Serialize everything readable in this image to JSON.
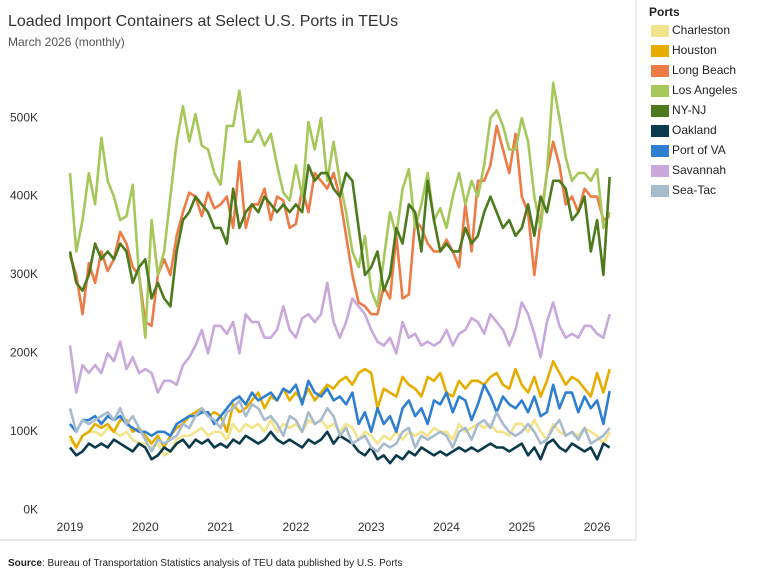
{
  "chart_data": {
    "type": "line",
    "title": "Loaded Import Containers at Select U.S. Ports in TEUs",
    "subtitle": "March 2026 (monthly)",
    "source_label": "Source",
    "source_text": ": Bureau of Transportation Statistics analysis of TEU data published by U.S. Ports",
    "legend_title": "Ports",
    "legend_position": "right",
    "grid": false,
    "categories": [
      "2019",
      null,
      null,
      null,
      null,
      null,
      null,
      null,
      null,
      null,
      null,
      null,
      "2020",
      null,
      null,
      null,
      null,
      null,
      null,
      null,
      null,
      null,
      null,
      null,
      "2021",
      null,
      null,
      null,
      null,
      null,
      null,
      null,
      null,
      null,
      null,
      null,
      "2022",
      null,
      null,
      null,
      null,
      null,
      null,
      null,
      null,
      null,
      null,
      null,
      "2023",
      null,
      null,
      null,
      null,
      null,
      null,
      null,
      null,
      null,
      null,
      null,
      "2024",
      null,
      null,
      null,
      null,
      null,
      null,
      null,
      null,
      null,
      null,
      null,
      "2025",
      null,
      null,
      null,
      null,
      null,
      null,
      null,
      null,
      null,
      null,
      null,
      "2026",
      null,
      null
    ],
    "ylim": [
      -15000,
      606000
    ],
    "yticks": [
      {
        "value": 0,
        "label": "0K"
      },
      {
        "value": 100000,
        "label": "100K"
      },
      {
        "value": 200000,
        "label": "200K"
      },
      {
        "value": 300000,
        "label": "300K"
      },
      {
        "value": 400000,
        "label": "400K"
      },
      {
        "value": 500000,
        "label": "500K"
      }
    ],
    "series": [
      {
        "name": "Charleston",
        "color": "#f3e38a",
        "values": [
          90000,
          80000,
          95000,
          100000,
          100000,
          95000,
          105000,
          100000,
          95000,
          100000,
          90000,
          85000,
          85000,
          80000,
          85000,
          70000,
          75000,
          90000,
          95000,
          95000,
          100000,
          105000,
          95000,
          100000,
          100000,
          90000,
          110000,
          100000,
          110000,
          105000,
          110000,
          100000,
          115000,
          100000,
          110000,
          105000,
          110000,
          100000,
          115000,
          110000,
          115000,
          105000,
          110000,
          100000,
          110000,
          105000,
          90000,
          100000,
          95000,
          85000,
          95000,
          90000,
          100000,
          90000,
          100000,
          95000,
          100000,
          95000,
          105000,
          100000,
          100000,
          90000,
          110000,
          100000,
          105000,
          110000,
          105000,
          110000,
          100000,
          100000,
          95000,
          110000,
          110000,
          100000,
          115000,
          100000,
          90000,
          110000,
          100000,
          95000,
          100000,
          95000,
          105000,
          100000,
          95000,
          85000,
          100000
        ]
      },
      {
        "name": "Houston",
        "color": "#e6ad00",
        "values": [
          95000,
          80000,
          95000,
          100000,
          110000,
          105000,
          110000,
          100000,
          115000,
          115000,
          100000,
          105000,
          95000,
          85000,
          95000,
          80000,
          95000,
          105000,
          110000,
          120000,
          125000,
          130000,
          120000,
          125000,
          120000,
          100000,
          135000,
          125000,
          130000,
          140000,
          150000,
          130000,
          145000,
          140000,
          155000,
          140000,
          150000,
          140000,
          155000,
          140000,
          150000,
          160000,
          155000,
          165000,
          170000,
          160000,
          175000,
          180000,
          175000,
          130000,
          155000,
          150000,
          145000,
          170000,
          160000,
          155000,
          145000,
          170000,
          165000,
          175000,
          150000,
          145000,
          165000,
          155000,
          165000,
          165000,
          160000,
          170000,
          175000,
          160000,
          155000,
          180000,
          160000,
          150000,
          170000,
          145000,
          165000,
          190000,
          175000,
          160000,
          170000,
          165000,
          155000,
          145000,
          175000,
          150000,
          180000
        ]
      },
      {
        "name": "Long Beach",
        "color": "#ee7b46",
        "values": [
          325000,
          300000,
          250000,
          315000,
          290000,
          330000,
          305000,
          320000,
          355000,
          340000,
          310000,
          300000,
          240000,
          235000,
          300000,
          320000,
          300000,
          350000,
          380000,
          405000,
          400000,
          375000,
          405000,
          385000,
          390000,
          400000,
          360000,
          445000,
          360000,
          390000,
          390000,
          410000,
          370000,
          400000,
          395000,
          360000,
          365000,
          410000,
          380000,
          430000,
          420000,
          410000,
          430000,
          400000,
          350000,
          300000,
          265000,
          260000,
          250000,
          250000,
          285000,
          270000,
          350000,
          270000,
          275000,
          370000,
          360000,
          340000,
          330000,
          330000,
          345000,
          330000,
          310000,
          390000,
          330000,
          420000,
          420000,
          440000,
          490000,
          460000,
          430000,
          480000,
          400000,
          380000,
          300000,
          370000,
          430000,
          470000,
          440000,
          390000,
          400000,
          380000,
          410000,
          400000,
          400000,
          370000,
          375000
        ]
      },
      {
        "name": "Los Angeles",
        "color": "#a6c75a",
        "values": [
          430000,
          330000,
          370000,
          430000,
          390000,
          475000,
          420000,
          400000,
          370000,
          375000,
          415000,
          300000,
          220000,
          370000,
          300000,
          330000,
          400000,
          470000,
          515000,
          470000,
          505000,
          465000,
          460000,
          430000,
          415000,
          490000,
          490000,
          535000,
          470000,
          470000,
          485000,
          465000,
          480000,
          440000,
          405000,
          395000,
          440000,
          400000,
          495000,
          460000,
          500000,
          420000,
          470000,
          420000,
          380000,
          330000,
          310000,
          350000,
          280000,
          260000,
          320000,
          380000,
          350000,
          410000,
          435000,
          360000,
          390000,
          430000,
          370000,
          385000,
          360000,
          400000,
          430000,
          390000,
          420000,
          400000,
          440000,
          500000,
          510000,
          490000,
          460000,
          460000,
          500000,
          470000,
          400000,
          360000,
          430000,
          545000,
          500000,
          450000,
          420000,
          430000,
          430000,
          420000,
          435000,
          360000,
          380000
        ]
      },
      {
        "name": "NY-NJ",
        "color": "#4e7a1e",
        "values": [
          330000,
          290000,
          280000,
          300000,
          340000,
          320000,
          330000,
          320000,
          340000,
          330000,
          290000,
          310000,
          320000,
          270000,
          290000,
          270000,
          260000,
          330000,
          370000,
          380000,
          400000,
          390000,
          380000,
          360000,
          360000,
          340000,
          410000,
          360000,
          380000,
          390000,
          380000,
          400000,
          390000,
          380000,
          390000,
          380000,
          390000,
          380000,
          440000,
          420000,
          430000,
          430000,
          410000,
          400000,
          430000,
          420000,
          360000,
          300000,
          310000,
          330000,
          280000,
          300000,
          360000,
          340000,
          390000,
          380000,
          330000,
          420000,
          370000,
          330000,
          340000,
          330000,
          330000,
          360000,
          340000,
          350000,
          380000,
          400000,
          380000,
          360000,
          370000,
          350000,
          360000,
          390000,
          350000,
          400000,
          380000,
          420000,
          420000,
          410000,
          370000,
          380000,
          400000,
          330000,
          370000,
          300000,
          425000
        ]
      },
      {
        "name": "Oakland",
        "color": "#0c3a4d",
        "values": [
          80000,
          70000,
          75000,
          85000,
          80000,
          85000,
          80000,
          90000,
          85000,
          80000,
          75000,
          85000,
          80000,
          65000,
          70000,
          80000,
          75000,
          85000,
          90000,
          80000,
          90000,
          85000,
          90000,
          80000,
          85000,
          80000,
          90000,
          85000,
          95000,
          90000,
          85000,
          90000,
          100000,
          90000,
          85000,
          90000,
          85000,
          80000,
          90000,
          85000,
          90000,
          100000,
          85000,
          95000,
          90000,
          85000,
          75000,
          70000,
          80000,
          65000,
          70000,
          60000,
          70000,
          65000,
          75000,
          70000,
          80000,
          75000,
          70000,
          75000,
          70000,
          75000,
          80000,
          75000,
          80000,
          75000,
          80000,
          85000,
          80000,
          80000,
          75000,
          80000,
          85000,
          70000,
          80000,
          65000,
          85000,
          90000,
          80000,
          75000,
          85000,
          80000,
          75000,
          80000,
          65000,
          85000,
          80000
        ]
      },
      {
        "name": "Port of VA",
        "color": "#2f7fd0",
        "values": [
          110000,
          100000,
          115000,
          115000,
          120000,
          110000,
          120000,
          115000,
          120000,
          110000,
          105000,
          100000,
          100000,
          95000,
          100000,
          100000,
          95000,
          110000,
          115000,
          120000,
          120000,
          125000,
          125000,
          110000,
          120000,
          130000,
          140000,
          145000,
          135000,
          150000,
          140000,
          145000,
          150000,
          140000,
          155000,
          150000,
          160000,
          135000,
          165000,
          150000,
          145000,
          155000,
          140000,
          145000,
          135000,
          150000,
          110000,
          125000,
          100000,
          130000,
          110000,
          120000,
          100000,
          130000,
          140000,
          120000,
          130000,
          110000,
          140000,
          135000,
          150000,
          125000,
          145000,
          140000,
          115000,
          135000,
          160000,
          145000,
          125000,
          145000,
          135000,
          130000,
          140000,
          125000,
          145000,
          120000,
          125000,
          160000,
          130000,
          150000,
          150000,
          125000,
          145000,
          130000,
          140000,
          110000,
          152000
        ]
      },
      {
        "name": "Savannah",
        "color": "#c9a8dc",
        "values": [
          210000,
          150000,
          185000,
          175000,
          185000,
          175000,
          200000,
          190000,
          215000,
          180000,
          195000,
          175000,
          180000,
          175000,
          150000,
          165000,
          165000,
          160000,
          185000,
          195000,
          210000,
          230000,
          200000,
          235000,
          235000,
          225000,
          240000,
          200000,
          250000,
          240000,
          240000,
          220000,
          220000,
          230000,
          260000,
          230000,
          220000,
          245000,
          250000,
          240000,
          250000,
          290000,
          240000,
          220000,
          240000,
          270000,
          260000,
          250000,
          230000,
          215000,
          210000,
          220000,
          200000,
          240000,
          220000,
          225000,
          210000,
          215000,
          210000,
          215000,
          230000,
          210000,
          225000,
          230000,
          245000,
          240000,
          225000,
          250000,
          240000,
          230000,
          210000,
          230000,
          265000,
          250000,
          225000,
          195000,
          240000,
          265000,
          235000,
          220000,
          225000,
          220000,
          235000,
          235000,
          225000,
          220000,
          250000
        ]
      },
      {
        "name": "Sea-Tac",
        "color": "#a7bbcf",
        "values": [
          130000,
          100000,
          115000,
          110000,
          115000,
          120000,
          125000,
          115000,
          130000,
          110000,
          120000,
          105000,
          90000,
          75000,
          90000,
          85000,
          90000,
          95000,
          110000,
          105000,
          120000,
          130000,
          120000,
          115000,
          105000,
          125000,
          130000,
          140000,
          120000,
          135000,
          130000,
          115000,
          120000,
          110000,
          95000,
          120000,
          115000,
          100000,
          125000,
          110000,
          115000,
          130000,
          120000,
          95000,
          105000,
          85000,
          90000,
          95000,
          80000,
          75000,
          85000,
          80000,
          85000,
          100000,
          105000,
          80000,
          95000,
          90000,
          95000,
          100000,
          95000,
          80000,
          100000,
          105000,
          90000,
          110000,
          115000,
          105000,
          125000,
          110000,
          100000,
          95000,
          100000,
          110000,
          100000,
          85000,
          90000,
          105000,
          115000,
          95000,
          100000,
          90000,
          105000,
          85000,
          90000,
          95000,
          105000
        ]
      }
    ]
  }
}
